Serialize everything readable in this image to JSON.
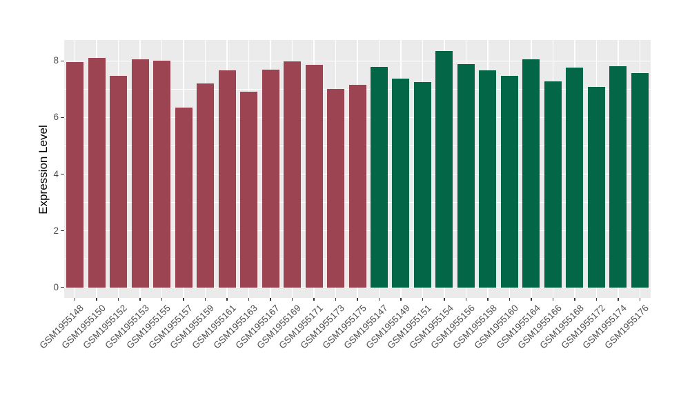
{
  "chart_data": {
    "type": "bar",
    "title": "",
    "xlabel": "",
    "ylabel": "Expression Level",
    "ylim": [
      0,
      8.75
    ],
    "yticks": [
      0,
      2,
      4,
      6,
      8
    ],
    "yticks_minor": [
      1,
      3,
      5,
      7
    ],
    "grid": "horizontal major+minor and vertical major, white on gray panel",
    "legend_position": "none",
    "categories": [
      "GSM1955148",
      "GSM1955150",
      "GSM1955152",
      "GSM1955153",
      "GSM1955155",
      "GSM1955157",
      "GSM1955159",
      "GSM1955161",
      "GSM1955163",
      "GSM1955167",
      "GSM1955169",
      "GSM1955171",
      "GSM1955173",
      "GSM1955175",
      "GSM1955147",
      "GSM1955149",
      "GSM1955151",
      "GSM1955154",
      "GSM1955156",
      "GSM1955158",
      "GSM1955160",
      "GSM1955164",
      "GSM1955166",
      "GSM1955168",
      "GSM1955172",
      "GSM1955174",
      "GSM1955176"
    ],
    "values": [
      7.96,
      8.11,
      7.47,
      8.06,
      8.01,
      6.34,
      7.2,
      7.67,
      6.9,
      7.68,
      7.98,
      7.85,
      7.0,
      7.15,
      7.8,
      7.37,
      7.25,
      8.35,
      7.88,
      7.67,
      7.48,
      8.06,
      7.28,
      7.76,
      7.08,
      7.81,
      7.58
    ],
    "bar_groups": [
      "maroon",
      "maroon",
      "maroon",
      "maroon",
      "maroon",
      "maroon",
      "maroon",
      "maroon",
      "maroon",
      "maroon",
      "maroon",
      "maroon",
      "maroon",
      "maroon",
      "green",
      "green",
      "green",
      "green",
      "green",
      "green",
      "green",
      "green",
      "green",
      "green",
      "green",
      "green",
      "green"
    ],
    "group_colors": {
      "maroon": "#9C4452",
      "green": "#026647"
    },
    "panel_bg": "#EBEBEB",
    "gridline_color": "#FFFFFF",
    "axis_text_color": "#4d4d4d",
    "tick_mark_color": "#333333"
  }
}
